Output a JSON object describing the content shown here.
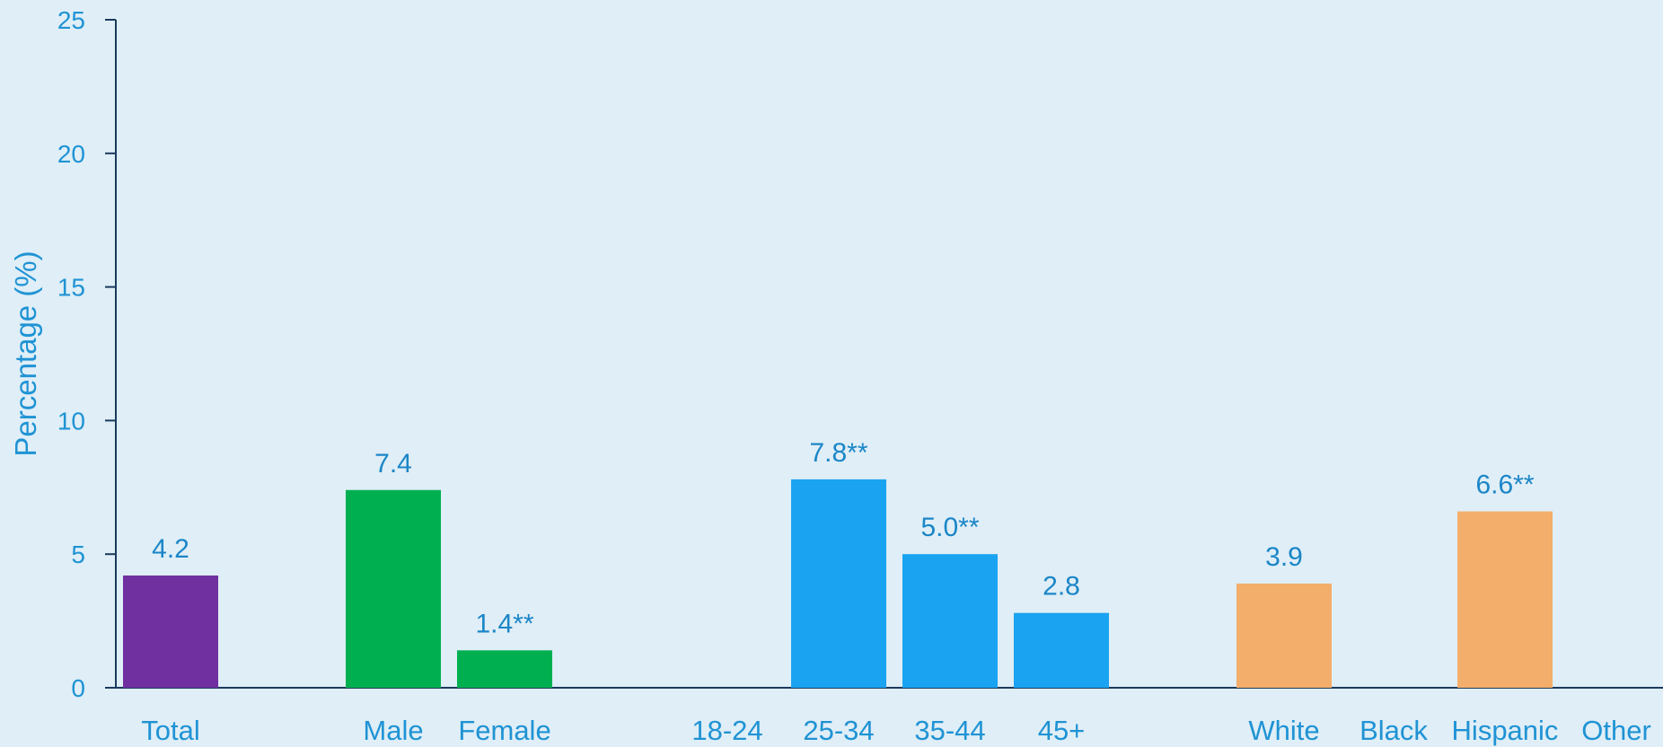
{
  "chart_data": {
    "type": "bar",
    "title": "",
    "xlabel": "",
    "ylabel": "Percentage (%)",
    "ylim": [
      0,
      25
    ],
    "yticks": [
      0,
      5,
      10,
      15,
      20,
      25
    ],
    "grid": false,
    "legend": "none",
    "colors": {
      "background": "#dfeef7",
      "axis": "#1a3b5d",
      "text": "#1f93d4",
      "Total": "#7030a0",
      "Gender": "#00b050",
      "Age": "#1aa3f0",
      "Race": "#f4ae6b"
    },
    "categories": [
      "Total",
      "Male",
      "Female",
      "18-24",
      "25-34",
      "35-44",
      "45+",
      "White",
      "Black",
      "Hispanic",
      "Other"
    ],
    "groups": [
      "Total",
      "Gender",
      "Gender",
      "Age",
      "Age",
      "Age",
      "Age",
      "Race",
      "Race",
      "Race",
      "Race"
    ],
    "values": [
      4.2,
      7.4,
      1.4,
      null,
      7.8,
      5.0,
      2.8,
      3.9,
      null,
      6.6,
      null
    ],
    "value_labels": [
      "4.2",
      "7.4",
      "1.4**",
      "",
      "7.8**",
      "5.0**",
      "2.8",
      "3.9",
      "",
      "6.6**",
      ""
    ]
  }
}
